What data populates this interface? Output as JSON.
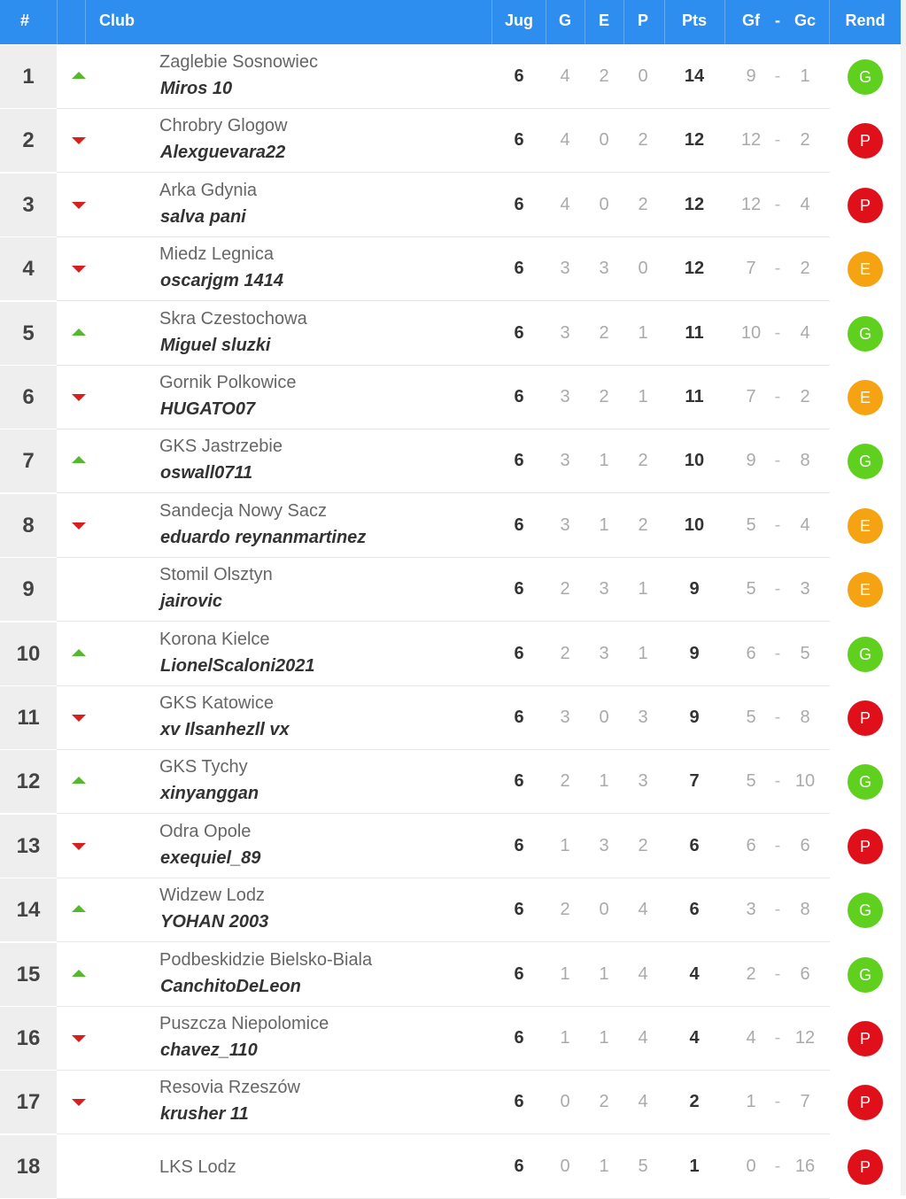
{
  "header": {
    "pos": "#",
    "club": "Club",
    "jug": "Jug",
    "g": "G",
    "e": "E",
    "p": "P",
    "pts": "Pts",
    "gf": "Gf",
    "dash": "-",
    "gc": "Gc",
    "rend": "Rend"
  },
  "colors": {
    "header": "#2e8ef0",
    "G": "#5fd01e",
    "E": "#f5a312",
    "P": "#e0101a",
    "up": "#55b82e",
    "down": "#d62020"
  },
  "rows": [
    {
      "pos": "1",
      "trend": "up",
      "team": "Zaglebie Sosnowiec",
      "manager": "Miros 10",
      "jug": "6",
      "g": "4",
      "e": "2",
      "p": "0",
      "pts": "14",
      "gf": "9",
      "gc": "1",
      "rend": "G"
    },
    {
      "pos": "2",
      "trend": "down",
      "team": "Chrobry Glogow",
      "manager": "Alexguevara22",
      "jug": "6",
      "g": "4",
      "e": "0",
      "p": "2",
      "pts": "12",
      "gf": "12",
      "gc": "2",
      "rend": "P"
    },
    {
      "pos": "3",
      "trend": "down",
      "team": "Arka Gdynia",
      "manager": "salva pani",
      "jug": "6",
      "g": "4",
      "e": "0",
      "p": "2",
      "pts": "12",
      "gf": "12",
      "gc": "4",
      "rend": "P"
    },
    {
      "pos": "4",
      "trend": "down",
      "team": "Miedz Legnica",
      "manager": "oscarjgm 1414",
      "jug": "6",
      "g": "3",
      "e": "3",
      "p": "0",
      "pts": "12",
      "gf": "7",
      "gc": "2",
      "rend": "E"
    },
    {
      "pos": "5",
      "trend": "up",
      "team": "Skra Czestochowa",
      "manager": "Miguel sluzki",
      "jug": "6",
      "g": "3",
      "e": "2",
      "p": "1",
      "pts": "11",
      "gf": "10",
      "gc": "4",
      "rend": "G"
    },
    {
      "pos": "6",
      "trend": "down",
      "team": "Gornik Polkowice",
      "manager": "HUGATO07",
      "jug": "6",
      "g": "3",
      "e": "2",
      "p": "1",
      "pts": "11",
      "gf": "7",
      "gc": "2",
      "rend": "E"
    },
    {
      "pos": "7",
      "trend": "up",
      "team": "GKS Jastrzebie",
      "manager": "oswall0711",
      "jug": "6",
      "g": "3",
      "e": "1",
      "p": "2",
      "pts": "10",
      "gf": "9",
      "gc": "8",
      "rend": "G"
    },
    {
      "pos": "8",
      "trend": "down",
      "team": "Sandecja Nowy Sacz",
      "manager": "eduardo reynanmartinez",
      "jug": "6",
      "g": "3",
      "e": "1",
      "p": "2",
      "pts": "10",
      "gf": "5",
      "gc": "4",
      "rend": "E"
    },
    {
      "pos": "9",
      "trend": "none",
      "team": "Stomil Olsztyn",
      "manager": "jairovic",
      "jug": "6",
      "g": "2",
      "e": "3",
      "p": "1",
      "pts": "9",
      "gf": "5",
      "gc": "3",
      "rend": "E"
    },
    {
      "pos": "10",
      "trend": "up",
      "team": "Korona Kielce",
      "manager": "LionelScaloni2021",
      "jug": "6",
      "g": "2",
      "e": "3",
      "p": "1",
      "pts": "9",
      "gf": "6",
      "gc": "5",
      "rend": "G"
    },
    {
      "pos": "11",
      "trend": "down",
      "team": "GKS Katowice",
      "manager": "xv Ilsanhezll vx",
      "jug": "6",
      "g": "3",
      "e": "0",
      "p": "3",
      "pts": "9",
      "gf": "5",
      "gc": "8",
      "rend": "P"
    },
    {
      "pos": "12",
      "trend": "up",
      "team": "GKS Tychy",
      "manager": "xinyanggan",
      "jug": "6",
      "g": "2",
      "e": "1",
      "p": "3",
      "pts": "7",
      "gf": "5",
      "gc": "10",
      "rend": "G"
    },
    {
      "pos": "13",
      "trend": "down",
      "team": "Odra Opole",
      "manager": "exequiel_89",
      "jug": "6",
      "g": "1",
      "e": "3",
      "p": "2",
      "pts": "6",
      "gf": "6",
      "gc": "6",
      "rend": "P"
    },
    {
      "pos": "14",
      "trend": "up",
      "team": "Widzew Lodz",
      "manager": "YOHAN 2003",
      "jug": "6",
      "g": "2",
      "e": "0",
      "p": "4",
      "pts": "6",
      "gf": "3",
      "gc": "8",
      "rend": "G"
    },
    {
      "pos": "15",
      "trend": "up",
      "team": "Podbeskidzie Bielsko-Biala",
      "manager": "CanchitoDeLeon",
      "jug": "6",
      "g": "1",
      "e": "1",
      "p": "4",
      "pts": "4",
      "gf": "2",
      "gc": "6",
      "rend": "G"
    },
    {
      "pos": "16",
      "trend": "down",
      "team": "Puszcza Niepolomice",
      "manager": "chavez_110",
      "jug": "6",
      "g": "1",
      "e": "1",
      "p": "4",
      "pts": "4",
      "gf": "4",
      "gc": "12",
      "rend": "P"
    },
    {
      "pos": "17",
      "trend": "down",
      "team": "Resovia Rzeszów",
      "manager": "krusher 11",
      "jug": "6",
      "g": "0",
      "e": "2",
      "p": "4",
      "pts": "2",
      "gf": "1",
      "gc": "7",
      "rend": "P"
    },
    {
      "pos": "18",
      "trend": "none",
      "team": "LKS Lodz",
      "manager": "",
      "jug": "6",
      "g": "0",
      "e": "1",
      "p": "5",
      "pts": "1",
      "gf": "0",
      "gc": "16",
      "rend": "P"
    }
  ]
}
